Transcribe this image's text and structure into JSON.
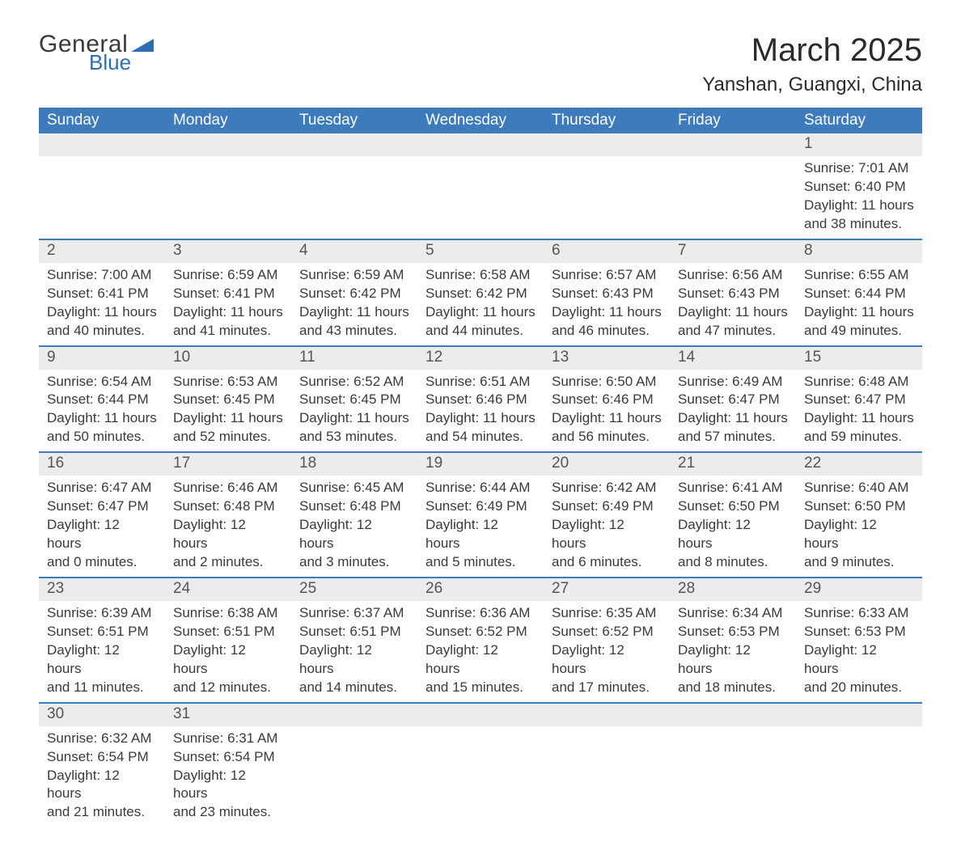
{
  "logo": {
    "text1": "General",
    "text2": "Blue",
    "shape_color": "#2d6fb5"
  },
  "title": "March 2025",
  "location": "Yanshan, Guangxi, China",
  "colors": {
    "header_bg": "#3d7bbd",
    "header_text": "#ffffff",
    "daynum_bg": "#ececec",
    "daynum_text": "#555555",
    "body_text": "#3a3a3a",
    "row_border": "#3d7bbd",
    "page_bg": "#ffffff"
  },
  "typography": {
    "title_fontsize": 40,
    "location_fontsize": 24,
    "weekday_fontsize": 19,
    "daynum_fontsize": 19,
    "detail_fontsize": 17,
    "font_family": "Arial"
  },
  "weekdays": [
    "Sunday",
    "Monday",
    "Tuesday",
    "Wednesday",
    "Thursday",
    "Friday",
    "Saturday"
  ],
  "weeks": [
    [
      null,
      null,
      null,
      null,
      null,
      null,
      {
        "n": "1",
        "sunrise": "7:01 AM",
        "sunset": "6:40 PM",
        "dl1": "11 hours",
        "dl2": "and 38 minutes."
      }
    ],
    [
      {
        "n": "2",
        "sunrise": "7:00 AM",
        "sunset": "6:41 PM",
        "dl1": "11 hours",
        "dl2": "and 40 minutes."
      },
      {
        "n": "3",
        "sunrise": "6:59 AM",
        "sunset": "6:41 PM",
        "dl1": "11 hours",
        "dl2": "and 41 minutes."
      },
      {
        "n": "4",
        "sunrise": "6:59 AM",
        "sunset": "6:42 PM",
        "dl1": "11 hours",
        "dl2": "and 43 minutes."
      },
      {
        "n": "5",
        "sunrise": "6:58 AM",
        "sunset": "6:42 PM",
        "dl1": "11 hours",
        "dl2": "and 44 minutes."
      },
      {
        "n": "6",
        "sunrise": "6:57 AM",
        "sunset": "6:43 PM",
        "dl1": "11 hours",
        "dl2": "and 46 minutes."
      },
      {
        "n": "7",
        "sunrise": "6:56 AM",
        "sunset": "6:43 PM",
        "dl1": "11 hours",
        "dl2": "and 47 minutes."
      },
      {
        "n": "8",
        "sunrise": "6:55 AM",
        "sunset": "6:44 PM",
        "dl1": "11 hours",
        "dl2": "and 49 minutes."
      }
    ],
    [
      {
        "n": "9",
        "sunrise": "6:54 AM",
        "sunset": "6:44 PM",
        "dl1": "11 hours",
        "dl2": "and 50 minutes."
      },
      {
        "n": "10",
        "sunrise": "6:53 AM",
        "sunset": "6:45 PM",
        "dl1": "11 hours",
        "dl2": "and 52 minutes."
      },
      {
        "n": "11",
        "sunrise": "6:52 AM",
        "sunset": "6:45 PM",
        "dl1": "11 hours",
        "dl2": "and 53 minutes."
      },
      {
        "n": "12",
        "sunrise": "6:51 AM",
        "sunset": "6:46 PM",
        "dl1": "11 hours",
        "dl2": "and 54 minutes."
      },
      {
        "n": "13",
        "sunrise": "6:50 AM",
        "sunset": "6:46 PM",
        "dl1": "11 hours",
        "dl2": "and 56 minutes."
      },
      {
        "n": "14",
        "sunrise": "6:49 AM",
        "sunset": "6:47 PM",
        "dl1": "11 hours",
        "dl2": "and 57 minutes."
      },
      {
        "n": "15",
        "sunrise": "6:48 AM",
        "sunset": "6:47 PM",
        "dl1": "11 hours",
        "dl2": "and 59 minutes."
      }
    ],
    [
      {
        "n": "16",
        "sunrise": "6:47 AM",
        "sunset": "6:47 PM",
        "dl1": "12 hours",
        "dl2": "and 0 minutes."
      },
      {
        "n": "17",
        "sunrise": "6:46 AM",
        "sunset": "6:48 PM",
        "dl1": "12 hours",
        "dl2": "and 2 minutes."
      },
      {
        "n": "18",
        "sunrise": "6:45 AM",
        "sunset": "6:48 PM",
        "dl1": "12 hours",
        "dl2": "and 3 minutes."
      },
      {
        "n": "19",
        "sunrise": "6:44 AM",
        "sunset": "6:49 PM",
        "dl1": "12 hours",
        "dl2": "and 5 minutes."
      },
      {
        "n": "20",
        "sunrise": "6:42 AM",
        "sunset": "6:49 PM",
        "dl1": "12 hours",
        "dl2": "and 6 minutes."
      },
      {
        "n": "21",
        "sunrise": "6:41 AM",
        "sunset": "6:50 PM",
        "dl1": "12 hours",
        "dl2": "and 8 minutes."
      },
      {
        "n": "22",
        "sunrise": "6:40 AM",
        "sunset": "6:50 PM",
        "dl1": "12 hours",
        "dl2": "and 9 minutes."
      }
    ],
    [
      {
        "n": "23",
        "sunrise": "6:39 AM",
        "sunset": "6:51 PM",
        "dl1": "12 hours",
        "dl2": "and 11 minutes."
      },
      {
        "n": "24",
        "sunrise": "6:38 AM",
        "sunset": "6:51 PM",
        "dl1": "12 hours",
        "dl2": "and 12 minutes."
      },
      {
        "n": "25",
        "sunrise": "6:37 AM",
        "sunset": "6:51 PM",
        "dl1": "12 hours",
        "dl2": "and 14 minutes."
      },
      {
        "n": "26",
        "sunrise": "6:36 AM",
        "sunset": "6:52 PM",
        "dl1": "12 hours",
        "dl2": "and 15 minutes."
      },
      {
        "n": "27",
        "sunrise": "6:35 AM",
        "sunset": "6:52 PM",
        "dl1": "12 hours",
        "dl2": "and 17 minutes."
      },
      {
        "n": "28",
        "sunrise": "6:34 AM",
        "sunset": "6:53 PM",
        "dl1": "12 hours",
        "dl2": "and 18 minutes."
      },
      {
        "n": "29",
        "sunrise": "6:33 AM",
        "sunset": "6:53 PM",
        "dl1": "12 hours",
        "dl2": "and 20 minutes."
      }
    ],
    [
      {
        "n": "30",
        "sunrise": "6:32 AM",
        "sunset": "6:54 PM",
        "dl1": "12 hours",
        "dl2": "and 21 minutes."
      },
      {
        "n": "31",
        "sunrise": "6:31 AM",
        "sunset": "6:54 PM",
        "dl1": "12 hours",
        "dl2": "and 23 minutes."
      },
      null,
      null,
      null,
      null,
      null
    ]
  ]
}
